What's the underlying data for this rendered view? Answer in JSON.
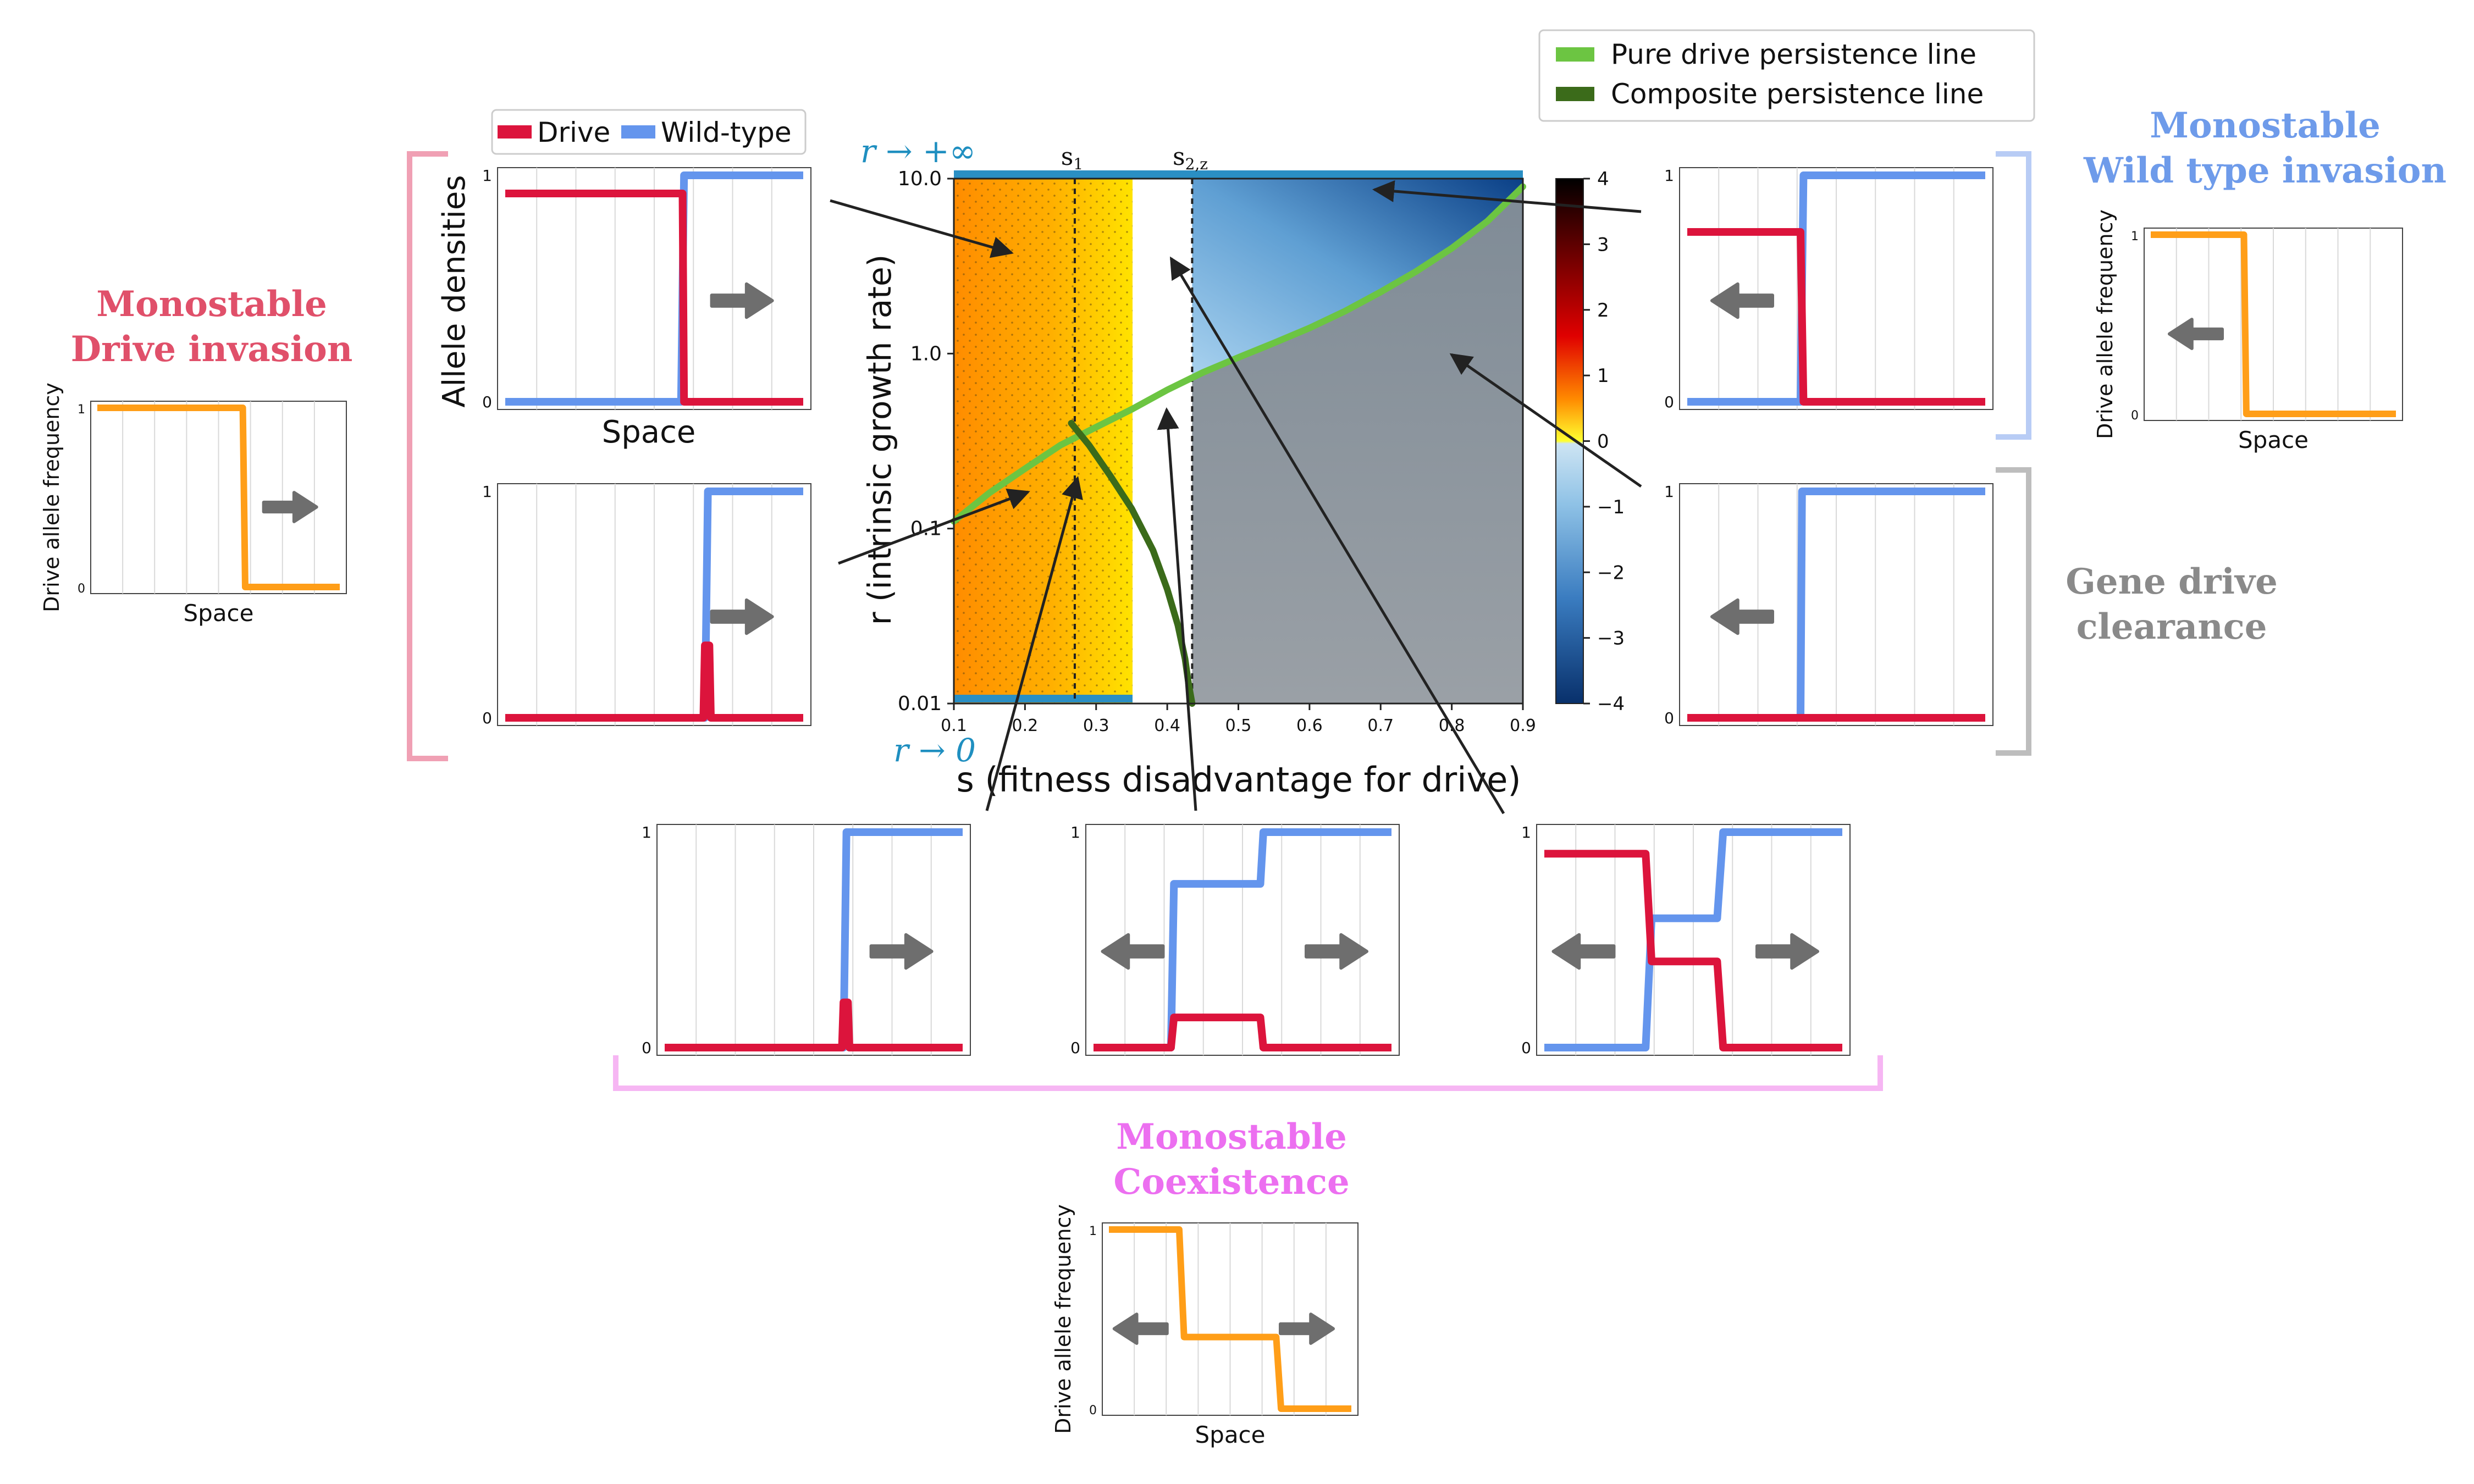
{
  "colors": {
    "drive": "#dc143c",
    "wild": "#6495ed",
    "orange": "#ff9e18",
    "gray_arrow": "#6e6e6e",
    "pure_line": "#6cc542",
    "composite_line": "#3b6b1a",
    "drive_invasion_title": "#e0506a",
    "coexistence_title": "#ec6ff0",
    "wild_invasion_title": "#6e9bea",
    "clearance_title": "#8a8a8a",
    "bracket_drive": "#f0a0b4",
    "bracket_coex": "#f6b6f3",
    "bracket_wild": "#b8ccf5",
    "bracket_clear": "#bdbdbd",
    "r_label": "#1f8fc0"
  },
  "labels": {
    "drive_invasion_title": [
      "Monostable",
      "Drive invasion"
    ],
    "coexistence_title": [
      "Monostable",
      "Coexistence"
    ],
    "wild_invasion_title": [
      "Monostable",
      "Wild type invasion"
    ],
    "clearance_title": [
      "Gene drive",
      "clearance"
    ],
    "legend_drive": "Drive",
    "legend_wild": "Wild-type",
    "allele_densities": "Allele densities",
    "space": "Space",
    "drive_allele_frequency": "Drive allele frequency",
    "tick_one": "1",
    "tick_zero": "0"
  },
  "chart_data": {
    "type": "heatmap",
    "xlabel": "s (fitness disadvantage for drive)",
    "ylabel": "r (intrinsic growth rate)",
    "xlim": [
      0.1,
      0.9
    ],
    "ylim": [
      0.01,
      10.0
    ],
    "y_scale": "log",
    "x_ticks": [
      "0.1",
      "0.2",
      "0.3",
      "0.4",
      "0.5",
      "0.6",
      "0.7",
      "0.8",
      "0.9"
    ],
    "y_ticks": [
      "10.0",
      "1.0",
      "0.1",
      "0.01"
    ],
    "colorbar_ticks": [
      "4",
      "3",
      "2",
      "1",
      "0",
      "−1",
      "−2",
      "−3",
      "−4"
    ],
    "colorbar_range": [
      -4,
      4
    ],
    "s1": 0.27,
    "s2z": 0.435,
    "s1_label": "s",
    "s1_sub": "1",
    "s2_label": "s",
    "s2_sub": "2,z",
    "r_inf_label": "r → +∞",
    "r_zero_label": "r → 0",
    "legend": [
      "Pure drive persistence line",
      "Composite persistence line"
    ],
    "legend_placement": "top-right",
    "pure_line": {
      "s": [
        0.1,
        0.15,
        0.2,
        0.25,
        0.3,
        0.35,
        0.4,
        0.45,
        0.5,
        0.55,
        0.6,
        0.65,
        0.7,
        0.75,
        0.8,
        0.85,
        0.9
      ],
      "r": [
        0.11,
        0.16,
        0.22,
        0.3,
        0.38,
        0.48,
        0.62,
        0.78,
        0.95,
        1.15,
        1.4,
        1.75,
        2.25,
        2.95,
        4.0,
        5.7,
        9.0
      ]
    },
    "composite_line": {
      "s": [
        0.265,
        0.29,
        0.32,
        0.35,
        0.38,
        0.4,
        0.415,
        0.425,
        0.43,
        0.435
      ],
      "r": [
        0.4,
        0.3,
        0.2,
        0.13,
        0.075,
        0.045,
        0.028,
        0.018,
        0.013,
        0.01
      ]
    }
  },
  "panels": {
    "density_tl": {
      "drive": {
        "x": [
          0,
          0.595,
          0.6,
          1
        ],
        "y": [
          0.92,
          0.92,
          0,
          0
        ]
      },
      "wild": {
        "x": [
          0,
          0.59,
          0.6,
          1
        ],
        "y": [
          0,
          0,
          1,
          1
        ]
      },
      "arrows": [
        "right"
      ]
    },
    "density_ml": {
      "drive": {
        "x": [
          0,
          0.665,
          0.67,
          0.685,
          0.69,
          1
        ],
        "y": [
          0,
          0,
          0.32,
          0.32,
          0,
          0
        ]
      },
      "wild": {
        "x": [
          0,
          0.67,
          0.68,
          1
        ],
        "y": [
          0,
          0,
          1,
          1
        ]
      },
      "arrows": [
        "right"
      ]
    },
    "density_bl": {
      "drive": {
        "x": [
          0,
          0.595,
          0.6,
          0.615,
          0.62,
          1
        ],
        "y": [
          0,
          0,
          0.21,
          0.21,
          0,
          0
        ]
      },
      "wild": {
        "x": [
          0,
          0.6,
          0.61,
          1
        ],
        "y": [
          0,
          0,
          1,
          1
        ]
      },
      "arrows": [
        "right"
      ]
    },
    "density_bm": {
      "drive": {
        "x": [
          0,
          0.26,
          0.27,
          0.56,
          0.57,
          1
        ],
        "y": [
          0,
          0,
          0.14,
          0.14,
          0,
          0
        ]
      },
      "wild": {
        "x": [
          0,
          0.26,
          0.27,
          0.56,
          0.57,
          1
        ],
        "y": [
          0,
          0,
          0.76,
          0.76,
          1,
          1
        ]
      },
      "arrows": [
        "left",
        "right"
      ]
    },
    "density_br": {
      "drive": {
        "x": [
          0,
          0.34,
          0.36,
          0.58,
          0.6,
          1
        ],
        "y": [
          0.9,
          0.9,
          0.4,
          0.4,
          0,
          0
        ]
      },
      "wild": {
        "x": [
          0,
          0.34,
          0.36,
          0.58,
          0.6,
          1
        ],
        "y": [
          0,
          0,
          0.6,
          0.6,
          1,
          1
        ]
      },
      "arrows": [
        "left",
        "right"
      ]
    },
    "density_tr": {
      "drive": {
        "x": [
          0,
          0.38,
          0.39,
          1
        ],
        "y": [
          0.75,
          0.75,
          0,
          0
        ]
      },
      "wild": {
        "x": [
          0,
          0.38,
          0.39,
          1
        ],
        "y": [
          0,
          0,
          1,
          1
        ]
      },
      "arrows": [
        "left"
      ]
    },
    "density_mr": {
      "drive": {
        "x": [
          0,
          1
        ],
        "y": [
          0,
          0
        ]
      },
      "wild": {
        "x": [
          0,
          0.38,
          0.385,
          1
        ],
        "y": [
          0,
          0,
          1,
          1
        ]
      },
      "arrows": [
        "left"
      ]
    },
    "freq_left": {
      "x": [
        0,
        0.6,
        0.61,
        1
      ],
      "y": [
        1,
        1,
        0,
        0
      ],
      "arrows": [
        "right"
      ]
    },
    "freq_right": {
      "x": [
        0,
        0.38,
        0.39,
        1
      ],
      "y": [
        1,
        1,
        0,
        0
      ],
      "arrows": [
        "left"
      ]
    },
    "freq_bottom": {
      "x": [
        0,
        0.29,
        0.31,
        0.69,
        0.71,
        1
      ],
      "y": [
        1,
        1,
        0.4,
        0.4,
        0,
        0
      ],
      "arrows": [
        "left",
        "right"
      ]
    }
  }
}
